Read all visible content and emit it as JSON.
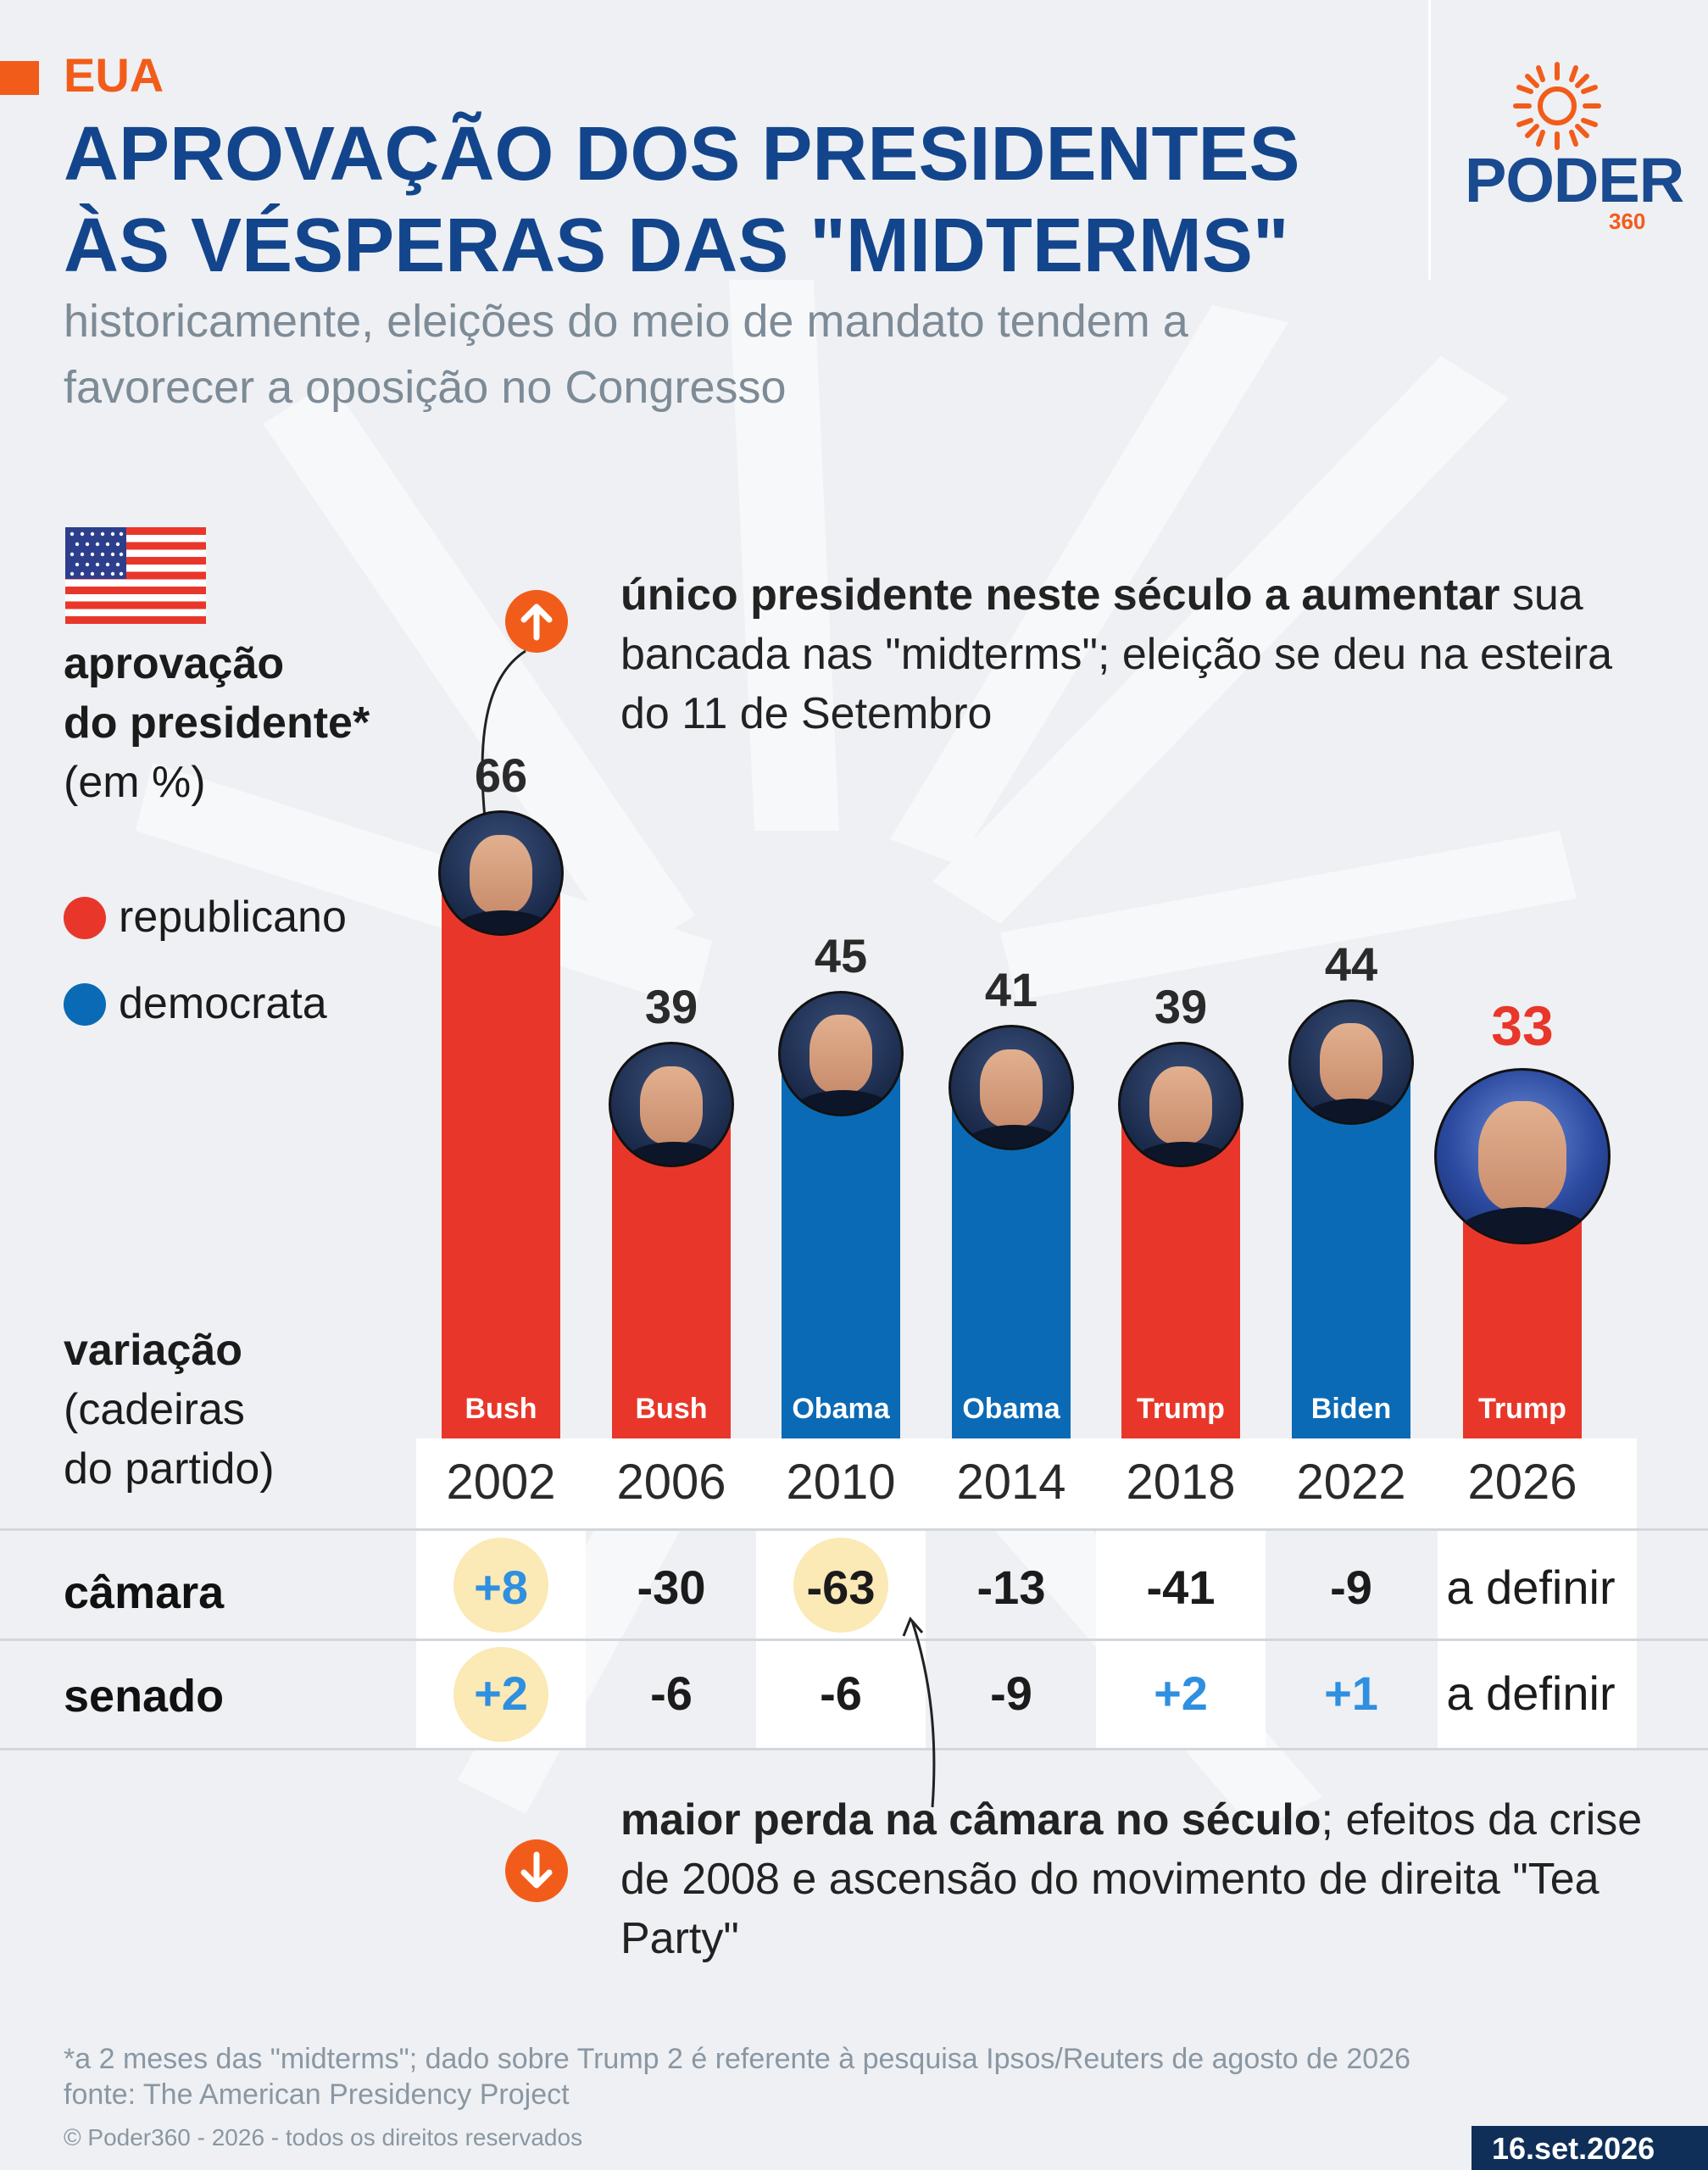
{
  "header": {
    "section": "EUA",
    "title": "APROVAÇÃO DOS PRESIDENTES ÀS VÉSPERAS DAS \"MIDTERMS\"",
    "subtitle": "historicamente, eleições do meio de mandato tendem a favorecer a oposição no Congresso"
  },
  "logo": {
    "name": "PODER",
    "suffix": "360"
  },
  "ylabel": {
    "line1": "aprovação",
    "line2": "do presidente*",
    "line3": "(em %)"
  },
  "legend": [
    {
      "label": "republicano",
      "color": "#e8372a"
    },
    {
      "label": "democrata",
      "color": "#0a6ab5"
    }
  ],
  "annotations": {
    "top": {
      "bold": "único presidente neste século a aumentar",
      "rest": "sua bancada nas \"midterms\"; eleição se deu na esteira do 11 de Setembro"
    },
    "bottom": {
      "bold": "maior perda na câmara no século",
      "rest": "; efeitos da crise de 2008 e ascensão do movimento de direita \"Tea Party\""
    }
  },
  "variation_label": {
    "line1": "variação",
    "line2": "(cadeiras",
    "line3": "do partido)"
  },
  "rows": {
    "house": "câmara",
    "senate": "senado"
  },
  "chart_data": {
    "type": "bar",
    "categories": [
      "2002",
      "2006",
      "2010",
      "2014",
      "2018",
      "2022",
      "2026"
    ],
    "presidents": [
      "Bush",
      "Bush",
      "Obama",
      "Obama",
      "Trump",
      "Biden",
      "Trump"
    ],
    "party": [
      "republicano",
      "republicano",
      "democrata",
      "democrata",
      "republicano",
      "democrata",
      "republicano"
    ],
    "values": [
      66,
      39,
      45,
      41,
      39,
      44,
      33
    ],
    "value_labels": [
      "66",
      "39",
      "45",
      "41",
      "39",
      "44",
      "33"
    ],
    "house_change": [
      "+8",
      "-30",
      "-63",
      "-13",
      "-41",
      "-9",
      "a definir"
    ],
    "senate_change": [
      "+2",
      "-6",
      "-6",
      "-9",
      "+2",
      "+1",
      "a definir"
    ],
    "highlighted_house": [
      "2002",
      "2010"
    ],
    "highlighted_senate": [
      "2002"
    ],
    "colors": {
      "republicano": "#e8372a",
      "democrata": "#0a6ab5"
    }
  },
  "footer": {
    "note": "*a 2 meses das \"midterms\"; dado sobre Trump 2 é referente à pesquisa Ipsos/Reuters de agosto de 2026",
    "source": "fonte: The American Presidency Project",
    "copyright": "© Poder360 - 2026 - todos os direitos reservados",
    "date": "16.set.2026"
  }
}
